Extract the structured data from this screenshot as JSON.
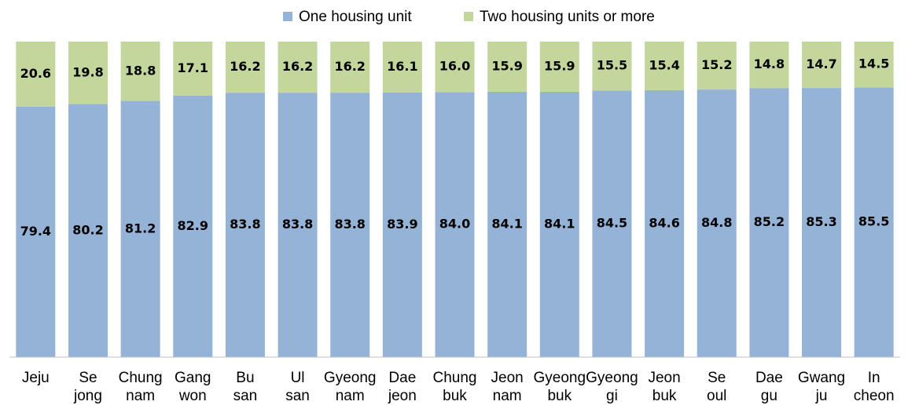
{
  "chart_data": {
    "type": "stacked_bar",
    "categories": [
      "Jeju",
      "Se\njong",
      "Chung\nnam",
      "Gang\nwon",
      "Bu\nsan",
      "Ul\nsan",
      "Gyeong\nnam",
      "Dae\njeon",
      "Chung\nbuk",
      "Jeon\nnam",
      "Gyeong\nbuk",
      "Gyeong\ngi",
      "Jeon\nbuk",
      "Se\noul",
      "Dae\ngu",
      "Gwang\nju",
      "In\ncheon"
    ],
    "series": [
      {
        "name": "One housing unit",
        "color": "#95b3d7",
        "values": [
          79.4,
          80.2,
          81.2,
          82.9,
          83.8,
          83.8,
          83.8,
          83.9,
          84.0,
          84.1,
          84.1,
          84.5,
          84.6,
          84.8,
          85.2,
          85.3,
          85.5
        ],
        "value_labels": [
          "79.4",
          "80.2",
          "81.2",
          "82.9",
          "83.8",
          "83.8",
          "83.8",
          "83.9",
          "84.0",
          "84.1",
          "84.1",
          "84.5",
          "84.6",
          "84.8",
          "85.2",
          "85.3",
          "85.5"
        ]
      },
      {
        "name": "Two housing units or more",
        "color": "#c3d69b",
        "values": [
          20.6,
          19.8,
          18.8,
          17.1,
          16.2,
          16.2,
          16.2,
          16.1,
          16.0,
          15.9,
          15.9,
          15.5,
          15.4,
          15.2,
          14.8,
          14.7,
          14.5
        ],
        "value_labels": [
          "20.6",
          "19.8",
          "18.8",
          "17.1",
          "16.2",
          "16.2",
          "16.2",
          "16.1",
          "16.0",
          "15.9",
          "15.9",
          "15.5",
          "15.4",
          "15.2",
          "14.8",
          "14.7",
          "14.5"
        ]
      }
    ],
    "ylim": [
      0,
      100
    ],
    "legend": "top"
  }
}
